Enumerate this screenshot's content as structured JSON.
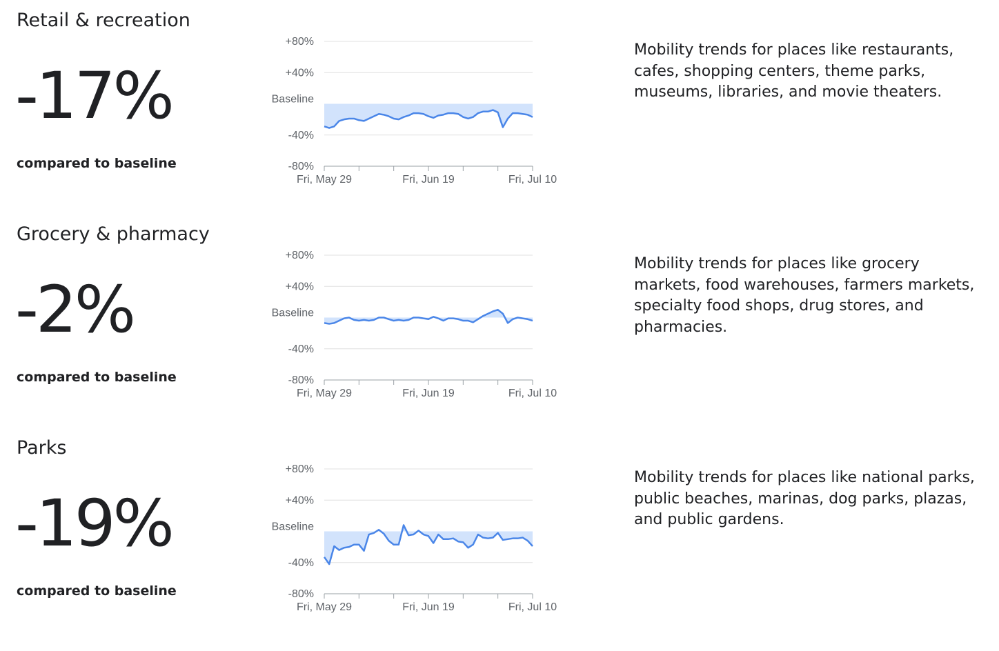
{
  "colors": {
    "line": "#4a86e8",
    "fill": "#d2e3fc",
    "grid": "#e0e0e0",
    "axis": "#9aa0a6",
    "text": "#202124"
  },
  "sections": [
    {
      "title": "Retail & recreation",
      "value": "-17%",
      "compared": "compared to baseline",
      "description": "Mobility trends for places like restaurants, cafes, shopping centers, theme parks, museums, libraries, and movie theaters."
    },
    {
      "title": "Grocery & pharmacy",
      "value": "-2%",
      "compared": "compared to baseline",
      "description": "Mobility trends for places like grocery markets, food warehouses, farmers markets, specialty food shops, drug stores, and pharmacies."
    },
    {
      "title": "Parks",
      "value": "-19%",
      "compared": "compared to baseline",
      "description": "Mobility trends for places like national parks, public beaches, marinas, dog parks, plazas, and public gardens."
    }
  ],
  "chart_data": [
    {
      "type": "area",
      "baseline_label": "Baseline",
      "y_ticks": [
        "+80%",
        "+40%",
        "-40%",
        "-80%"
      ],
      "ylim": [
        -80,
        80
      ],
      "x_start": "2020-05-29",
      "x_ticks": [
        "Fri, May 29",
        "Fri, Jun 19",
        "Fri, Jul 10"
      ],
      "grid": true,
      "values": [
        -29,
        -31,
        -29,
        -22,
        -20,
        -19,
        -19,
        -21,
        -22,
        -19,
        -16,
        -13,
        -14,
        -16,
        -19,
        -20,
        -17,
        -15,
        -12,
        -12,
        -13,
        -16,
        -18,
        -15,
        -14,
        -12,
        -12,
        -13,
        -17,
        -19,
        -17,
        -12,
        -10,
        -10,
        -8,
        -11,
        -30,
        -19,
        -12,
        -12,
        -13,
        -14,
        -17
      ]
    },
    {
      "type": "area",
      "baseline_label": "Baseline",
      "y_ticks": [
        "+80%",
        "+40%",
        "-40%",
        "-80%"
      ],
      "ylim": [
        -80,
        80
      ],
      "x_start": "2020-05-29",
      "x_ticks": [
        "Fri, May 29",
        "Fri, Jun 19",
        "Fri, Jul 10"
      ],
      "grid": true,
      "values": [
        -7,
        -8,
        -7,
        -4,
        -1,
        0,
        -3,
        -4,
        -3,
        -4,
        -3,
        0,
        0,
        -2,
        -4,
        -3,
        -4,
        -3,
        0,
        0,
        -1,
        -2,
        1,
        -1,
        -4,
        -1,
        -1,
        -2,
        -4,
        -4,
        -6,
        -2,
        2,
        5,
        8,
        10,
        5,
        -7,
        -2,
        0,
        -1,
        -2,
        -4
      ]
    },
    {
      "type": "area",
      "baseline_label": "Baseline",
      "y_ticks": [
        "+80%",
        "+40%",
        "-40%",
        "-80%"
      ],
      "ylim": [
        -80,
        80
      ],
      "x_start": "2020-05-29",
      "x_ticks": [
        "Fri, May 29",
        "Fri, Jun 19",
        "Fri, Jul 10"
      ],
      "grid": true,
      "values": [
        -33,
        -42,
        -19,
        -24,
        -21,
        -20,
        -17,
        -17,
        -25,
        -4,
        -2,
        2,
        -3,
        -12,
        -17,
        -17,
        8,
        -5,
        -4,
        1,
        -4,
        -6,
        -15,
        -4,
        -10,
        -10,
        -9,
        -13,
        -14,
        -21,
        -17,
        -4,
        -8,
        -9,
        -8,
        -2,
        -11,
        -10,
        -9,
        -9,
        -8,
        -12,
        -19
      ]
    }
  ]
}
